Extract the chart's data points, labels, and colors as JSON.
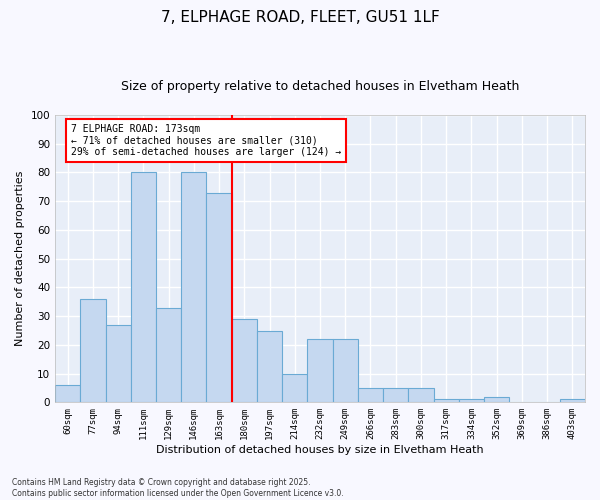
{
  "title1": "7, ELPHAGE ROAD, FLEET, GU51 1LF",
  "title2": "Size of property relative to detached houses in Elvetham Heath",
  "xlabel": "Distribution of detached houses by size in Elvetham Heath",
  "ylabel": "Number of detached properties",
  "categories": [
    "60sqm",
    "77sqm",
    "94sqm",
    "111sqm",
    "129sqm",
    "146sqm",
    "163sqm",
    "180sqm",
    "197sqm",
    "214sqm",
    "232sqm",
    "249sqm",
    "266sqm",
    "283sqm",
    "300sqm",
    "317sqm",
    "334sqm",
    "352sqm",
    "369sqm",
    "386sqm",
    "403sqm"
  ],
  "values": [
    6,
    36,
    27,
    80,
    33,
    80,
    73,
    29,
    25,
    10,
    22,
    22,
    5,
    5,
    5,
    1,
    1,
    2,
    0,
    0,
    1
  ],
  "bar_color": "#c5d8f0",
  "bar_edge_color": "#6aaad4",
  "ref_line_label": "7 ELPHAGE ROAD: 173sqm",
  "annotation_line1": "← 71% of detached houses are smaller (310)",
  "annotation_line2": "29% of semi-detached houses are larger (124) →",
  "vline_color": "red",
  "ylim": [
    0,
    100
  ],
  "yticks": [
    0,
    10,
    20,
    30,
    40,
    50,
    60,
    70,
    80,
    90,
    100
  ],
  "background_color": "#e8eef8",
  "grid_color": "#ffffff",
  "footer": "Contains HM Land Registry data © Crown copyright and database right 2025.\nContains public sector information licensed under the Open Government Licence v3.0.",
  "title1_fontsize": 11,
  "title2_fontsize": 9,
  "xlabel_fontsize": 8,
  "ylabel_fontsize": 8
}
